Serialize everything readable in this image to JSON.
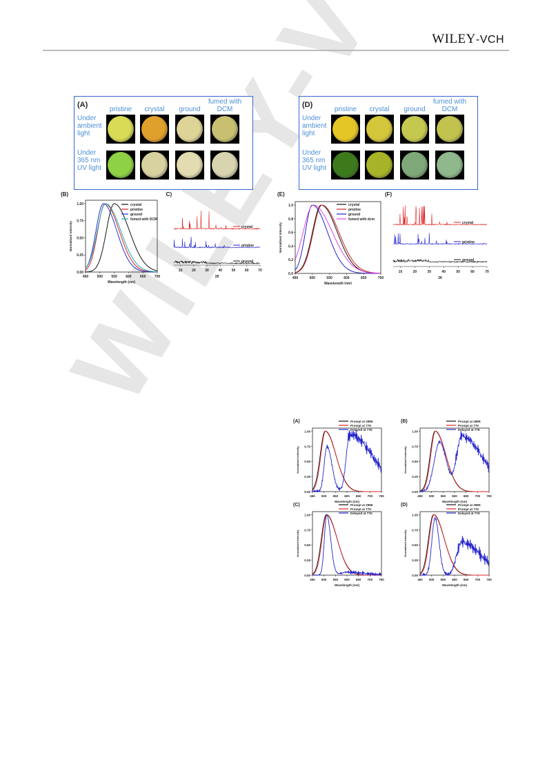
{
  "header": {
    "brand": "WILEY-VCH",
    "brand_main": "WILEY",
    "brand_suffix": "-VCH"
  },
  "watermark": "WILEY-VCH",
  "photo_panels": [
    {
      "label": "(A)",
      "columns": [
        "pristine",
        "crystal",
        "ground",
        "fumed with DCM"
      ],
      "rows": [
        "Under ambient light",
        "Under 365 nm UV light"
      ],
      "colors": [
        [
          "#d9da55",
          "#e0a02c",
          "#ded498",
          "#c8c070"
        ],
        [
          "#8fd145",
          "#d8d2a0",
          "#e2dcb0",
          "#d8d4b0"
        ]
      ]
    },
    {
      "label": "(D)",
      "columns": [
        "pristine",
        "crystal",
        "ground",
        "fumed with DCM"
      ],
      "rows": [
        "Under ambient light",
        "Under 365 nm UV light"
      ],
      "colors": [
        [
          "#e5c627",
          "#d4c63a",
          "#c4c84e",
          "#c2c24e"
        ],
        [
          "#3c7a1c",
          "#a8b428",
          "#7fa878",
          "#8fb88c"
        ]
      ]
    }
  ],
  "chart_data": [
    {
      "id": "B",
      "panel": "(B)",
      "type": "line",
      "xlabel": "Wavelength (nm)",
      "ylabel": "Normalized intensity",
      "xlim": [
        450,
        700
      ],
      "ylim": [
        0,
        1.05
      ],
      "xticks": [
        450,
        500,
        550,
        600,
        650,
        700
      ],
      "yticks": [
        0,
        0.25,
        0.5,
        0.75,
        1.0
      ],
      "ytick_labels": [
        "0.00",
        "0.25",
        "0.50",
        "0.75",
        "1.00"
      ],
      "series": [
        {
          "name": "crystal",
          "color": "#111111",
          "peak": 550,
          "wl": 32,
          "wr": 62
        },
        {
          "name": "pristine",
          "color": "#dd2222",
          "peak": 518,
          "wl": 30,
          "wr": 58
        },
        {
          "name": "ground",
          "color": "#2233cc",
          "peak": 512,
          "wl": 30,
          "wr": 55
        },
        {
          "name": "fumed with DCM",
          "color": "#22aaaa",
          "peak": 520,
          "wl": 34,
          "wr": 62
        }
      ]
    },
    {
      "id": "C",
      "panel": "(C)",
      "type": "line",
      "xlabel": "2θ",
      "xlim": [
        5,
        70
      ],
      "xticks": [
        10,
        20,
        30,
        40,
        50,
        60,
        70
      ],
      "series": [
        {
          "name": "crystal",
          "color": "#dd2222"
        },
        {
          "name": "pristine",
          "color": "#2222cc"
        },
        {
          "name": "ground",
          "color": "#111111"
        }
      ]
    },
    {
      "id": "E",
      "panel": "(E)",
      "type": "line",
      "xlabel": "Wavelength (nm)",
      "ylabel": "Normalized Intensity",
      "xlim": [
        450,
        700
      ],
      "ylim": [
        0,
        1.05
      ],
      "xticks": [
        450,
        500,
        550,
        600,
        650,
        700
      ],
      "yticks": [
        0,
        0.2,
        0.4,
        0.6,
        0.8,
        1.0
      ],
      "ytick_labels": [
        "0.0",
        "0.2",
        "0.4",
        "0.6",
        "0.8",
        "1.0"
      ],
      "series": [
        {
          "name": "crystal",
          "color": "#111111",
          "peak": 526,
          "wl": 30,
          "wr": 55
        },
        {
          "name": "pristine",
          "color": "#cc2222",
          "peak": 528,
          "wl": 30,
          "wr": 58
        },
        {
          "name": "ground",
          "color": "#2222cc",
          "peak": 500,
          "wl": 24,
          "wr": 52
        },
        {
          "name": "fumed with dcm",
          "color": "#dd44dd",
          "peak": 503,
          "wl": 35,
          "wr": 65
        }
      ]
    },
    {
      "id": "F",
      "panel": "(F)",
      "type": "line",
      "xlabel": "2θ",
      "xlim": [
        5,
        70
      ],
      "xticks": [
        10,
        20,
        30,
        40,
        50,
        60,
        70
      ],
      "series": [
        {
          "name": "crystal",
          "color": "#dd2222"
        },
        {
          "name": "pristine",
          "color": "#2222cc"
        },
        {
          "name": "ground",
          "color": "#111111"
        }
      ]
    },
    {
      "id": "A2",
      "panel": "(A)",
      "type": "line",
      "xlabel": "Wavelength (nm)",
      "ylabel": "Normalized Intensity",
      "xlim": [
        450,
        750
      ],
      "ylim": [
        0,
        1.05
      ],
      "xticks": [
        450,
        500,
        550,
        600,
        650,
        700,
        750
      ],
      "yticks": [
        0,
        0.25,
        0.5,
        0.75,
        1.0
      ],
      "ytick_labels": [
        "0.00",
        "0.25",
        "0.50",
        "0.75",
        "1.00"
      ],
      "series": [
        {
          "name": "Prompt at 298K",
          "color": "#111111"
        },
        {
          "name": "Prompt at 77K",
          "color": "#dd2222"
        },
        {
          "name": "Delayed at 77K",
          "color": "#2222cc"
        }
      ]
    },
    {
      "id": "B2",
      "panel": "(B)",
      "type": "line",
      "xlabel": "Wavelength (nm)",
      "ylabel": "Normalized Intensity",
      "xlim": [
        450,
        750
      ],
      "ylim": [
        0,
        1.05
      ],
      "xticks": [
        450,
        500,
        550,
        600,
        650,
        700,
        750
      ],
      "yticks": [
        0,
        0.25,
        0.5,
        0.75,
        1.0
      ],
      "ytick_labels": [
        "0.00",
        "0.25",
        "0.50",
        "0.75",
        "1.00"
      ],
      "series": [
        {
          "name": "Prompt at 298K",
          "color": "#111111"
        },
        {
          "name": "Prompt at 77K",
          "color": "#dd2222"
        },
        {
          "name": "Delayed at 77K",
          "color": "#2222cc"
        }
      ]
    },
    {
      "id": "C2",
      "panel": "(C)",
      "type": "line",
      "xlabel": "Wavelength (nm)",
      "ylabel": "Normalized Intensity",
      "xlim": [
        450,
        750
      ],
      "ylim": [
        0,
        1.05
      ],
      "xticks": [
        450,
        500,
        550,
        600,
        650,
        700,
        750
      ],
      "yticks": [
        0,
        0.25,
        0.5,
        0.75,
        1.0
      ],
      "ytick_labels": [
        "0.00",
        "0.25",
        "0.50",
        "0.75",
        "1.00"
      ],
      "series": [
        {
          "name": "Prompt at 298K",
          "color": "#111111"
        },
        {
          "name": "Prompt at 77K",
          "color": "#dd2222"
        },
        {
          "name": "Delayed at 77K",
          "color": "#2222cc"
        }
      ]
    },
    {
      "id": "D2",
      "panel": "(D)",
      "type": "line",
      "xlabel": "Wavelength (nm)",
      "ylabel": "Normalized Intensity",
      "xlim": [
        450,
        750
      ],
      "ylim": [
        0,
        1.05
      ],
      "xticks": [
        450,
        500,
        550,
        600,
        650,
        700,
        750
      ],
      "yticks": [
        0,
        0.25,
        0.5,
        0.75,
        1.0
      ],
      "ytick_labels": [
        "0.00",
        "0.25",
        "0.50",
        "0.75",
        "1.00"
      ],
      "series": [
        {
          "name": "Prompt at 298K",
          "color": "#111111"
        },
        {
          "name": "Prompt at 77K",
          "color": "#dd2222"
        },
        {
          "name": "Delayed at 77K",
          "color": "#2222cc"
        }
      ]
    }
  ]
}
